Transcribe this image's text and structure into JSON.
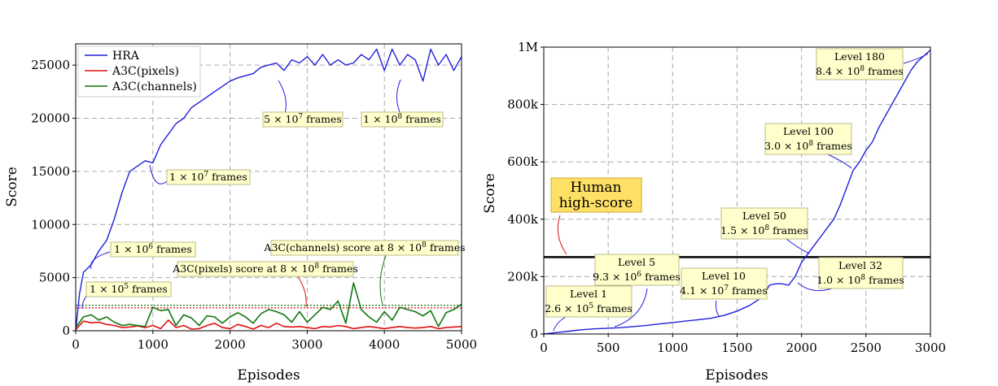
{
  "colors": {
    "hra": "#1f1fdc",
    "a3c_pixels": "#e01010",
    "a3c_channels": "#117711",
    "box_fill": "#ffffcc",
    "box_stroke": "#bbbb88",
    "human_fill": "#ffe066"
  },
  "chart_data": [
    {
      "type": "line",
      "xlabel": "Episodes",
      "ylabel": "Score",
      "xlim": [
        0,
        5000
      ],
      "ylim": [
        0,
        27000
      ],
      "xticks": [
        0,
        1000,
        2000,
        3000,
        4000,
        5000
      ],
      "xtick_labels": [
        "0",
        "1000",
        "2000",
        "3000",
        "4000",
        "5000"
      ],
      "yticks": [
        0,
        5000,
        10000,
        15000,
        20000,
        25000
      ],
      "ytick_labels": [
        "0",
        "5000",
        "10000",
        "15000",
        "20000",
        "25000"
      ],
      "grid": true,
      "legend_position": "top-left",
      "series": [
        {
          "name": "HRA",
          "x": [
            0,
            50,
            100,
            200,
            300,
            400,
            500,
            600,
            700,
            800,
            900,
            1000,
            1100,
            1200,
            1300,
            1400,
            1500,
            1600,
            1700,
            1800,
            1900,
            2000,
            2100,
            2200,
            2300,
            2400,
            2500,
            2600,
            2700,
            2800,
            2900,
            3000,
            3100,
            3200,
            3300,
            3400,
            3500,
            3600,
            3700,
            3800,
            3900,
            4000,
            4100,
            4200,
            4300,
            4400,
            4500,
            4600,
            4700,
            4800,
            4900,
            5000
          ],
          "y": [
            0,
            3500,
            5500,
            6200,
            7500,
            8500,
            10500,
            13000,
            15000,
            15500,
            16000,
            15800,
            17500,
            18500,
            19500,
            20000,
            21000,
            21500,
            22000,
            22500,
            23000,
            23500,
            23800,
            24000,
            24200,
            24800,
            25000,
            25200,
            24500,
            25500,
            25200,
            25800,
            25000,
            26000,
            25000,
            25500,
            25000,
            25200,
            26000,
            25500,
            26500,
            24500,
            26500,
            25000,
            26000,
            25500,
            23500,
            26500,
            25000,
            26000,
            24500,
            25800
          ]
        },
        {
          "name": "A3C(pixels)",
          "x": [
            0,
            100,
            200,
            300,
            400,
            500,
            600,
            700,
            800,
            900,
            1000,
            1100,
            1200,
            1300,
            1400,
            1500,
            1600,
            1700,
            1800,
            1900,
            2000,
            2100,
            2200,
            2300,
            2400,
            2500,
            2600,
            2700,
            2800,
            2900,
            3000,
            3100,
            3200,
            3300,
            3400,
            3500,
            3600,
            3700,
            3800,
            3900,
            4000,
            4100,
            4200,
            4300,
            4400,
            4500,
            4600,
            4700,
            4800,
            4900,
            5000
          ],
          "y": [
            100,
            900,
            750,
            800,
            600,
            500,
            300,
            350,
            450,
            300,
            500,
            200,
            1000,
            300,
            500,
            150,
            200,
            500,
            700,
            300,
            200,
            600,
            400,
            150,
            500,
            300,
            700,
            400,
            350,
            400,
            300,
            200,
            400,
            350,
            500,
            400,
            200,
            300,
            400,
            300,
            200,
            300,
            400,
            300,
            250,
            300,
            400,
            200,
            300,
            350,
            400
          ]
        },
        {
          "name": "A3C(channels)",
          "x": [
            0,
            100,
            200,
            300,
            400,
            500,
            600,
            700,
            800,
            900,
            1000,
            1100,
            1200,
            1300,
            1400,
            1500,
            1600,
            1700,
            1800,
            1900,
            2000,
            2100,
            2200,
            2300,
            2400,
            2500,
            2600,
            2700,
            2800,
            2900,
            3000,
            3100,
            3200,
            3300,
            3400,
            3500,
            3600,
            3700,
            3800,
            3900,
            4000,
            4100,
            4200,
            4300,
            4400,
            4500,
            4600,
            4700,
            4800,
            4900,
            5000
          ],
          "y": [
            300,
            1300,
            1500,
            1000,
            1300,
            800,
            500,
            600,
            500,
            400,
            2200,
            1900,
            2000,
            500,
            1500,
            1200,
            500,
            1400,
            1300,
            700,
            1300,
            1700,
            1300,
            700,
            1600,
            2000,
            1800,
            1500,
            800,
            1800,
            800,
            1500,
            2200,
            2000,
            2800,
            700,
            4500,
            2000,
            1300,
            800,
            1800,
            1000,
            2200,
            2000,
            1800,
            1400,
            1900,
            400,
            1700,
            2000,
            2500
          ]
        }
      ],
      "reference_lines": [
        {
          "y": 2150,
          "color": "#e01010",
          "style": "dotted"
        },
        {
          "y": 2400,
          "color": "#117711",
          "style": "dotted"
        }
      ],
      "annotations": [
        {
          "text": "1 × 10",
          "sup": "5",
          "suffix": " frames",
          "x": 0,
          "y": 1200
        },
        {
          "text": "1 × 10",
          "sup": "6",
          "suffix": " frames",
          "x": 0,
          "y": 5500
        },
        {
          "text": "1 × 10",
          "sup": "7",
          "suffix": " frames",
          "x": 0,
          "y": 16000
        },
        {
          "text": "5 × 10",
          "sup": "7",
          "suffix": " frames",
          "x": 0,
          "y": 24500
        },
        {
          "text": "1 × 10",
          "sup": "8",
          "suffix": " frames",
          "x": 0,
          "y": 24500
        },
        {
          "text": "A3C(pixels) score at 8 × 10",
          "sup": "8",
          "suffix": " frames",
          "x": 0,
          "y": 2150
        },
        {
          "text": "A3C(channels) score at 8 × 10",
          "sup": "8",
          "suffix": " frames",
          "x": 0,
          "y": 2400
        }
      ]
    },
    {
      "type": "line",
      "xlabel": "Episodes",
      "ylabel": "Score",
      "xlim": [
        0,
        3000
      ],
      "ylim": [
        0,
        1000000
      ],
      "xticks": [
        0,
        500,
        1000,
        1500,
        2000,
        2500,
        3000
      ],
      "xtick_labels": [
        "0",
        "500",
        "1000",
        "1500",
        "2000",
        "2500",
        "3000"
      ],
      "yticks": [
        0,
        200000,
        400000,
        600000,
        800000,
        1000000
      ],
      "ytick_labels": [
        "0",
        "200k",
        "400k",
        "600k",
        "800k",
        "1M"
      ],
      "grid": true,
      "series": [
        {
          "name": "",
          "x": [
            0,
            100,
            200,
            300,
            400,
            500,
            600,
            700,
            800,
            900,
            1000,
            1100,
            1200,
            1300,
            1400,
            1500,
            1600,
            1700,
            1750,
            1800,
            1850,
            1900,
            1950,
            2000,
            2050,
            2100,
            2150,
            2200,
            2250,
            2300,
            2350,
            2400,
            2450,
            2500,
            2550,
            2600,
            2650,
            2700,
            2750,
            2800,
            2850,
            2900,
            2950,
            3000
          ],
          "y": [
            0,
            5000,
            10000,
            15000,
            18000,
            20000,
            22000,
            26000,
            30000,
            35000,
            40000,
            45000,
            50000,
            55000,
            65000,
            80000,
            100000,
            130000,
            170000,
            175000,
            175000,
            170000,
            200000,
            250000,
            280000,
            310000,
            340000,
            370000,
            400000,
            450000,
            510000,
            570000,
            600000,
            640000,
            670000,
            720000,
            760000,
            800000,
            840000,
            880000,
            920000,
            950000,
            970000,
            990000
          ]
        }
      ],
      "reference_lines": [
        {
          "y": 268000,
          "color": "#000000",
          "style": "solid"
        }
      ],
      "human": {
        "line1": "Human",
        "line2": "high-score"
      },
      "annotations": [
        {
          "line1": "Level 1",
          "text": "2.6 × 10",
          "sup": "5",
          "suffix": " frames",
          "x": 70,
          "y": 3000
        },
        {
          "line1": "Level 5",
          "text": "9.3 × 10",
          "sup": "6",
          "suffix": " frames",
          "x": 560,
          "y": 21000
        },
        {
          "line1": "Level 10",
          "text": "4.1 × 10",
          "sup": "7",
          "suffix": " frames",
          "x": 1360,
          "y": 55000
        },
        {
          "line1": "Level 32",
          "text": "1.0 × 10",
          "sup": "8",
          "suffix": " frames",
          "x": 1970,
          "y": 230000
        },
        {
          "line1": "Level 50",
          "text": "1.5 × 10",
          "sup": "8",
          "suffix": " frames",
          "x": 2100,
          "y": 310000
        },
        {
          "line1": "Level 100",
          "text": "3.0 × 10",
          "sup": "8",
          "suffix": " frames",
          "x": 2420,
          "y": 580000
        },
        {
          "line1": "Level 180",
          "text": "8.4 × 10",
          "sup": "8",
          "suffix": " frames",
          "x": 2990,
          "y": 985000
        }
      ]
    }
  ]
}
